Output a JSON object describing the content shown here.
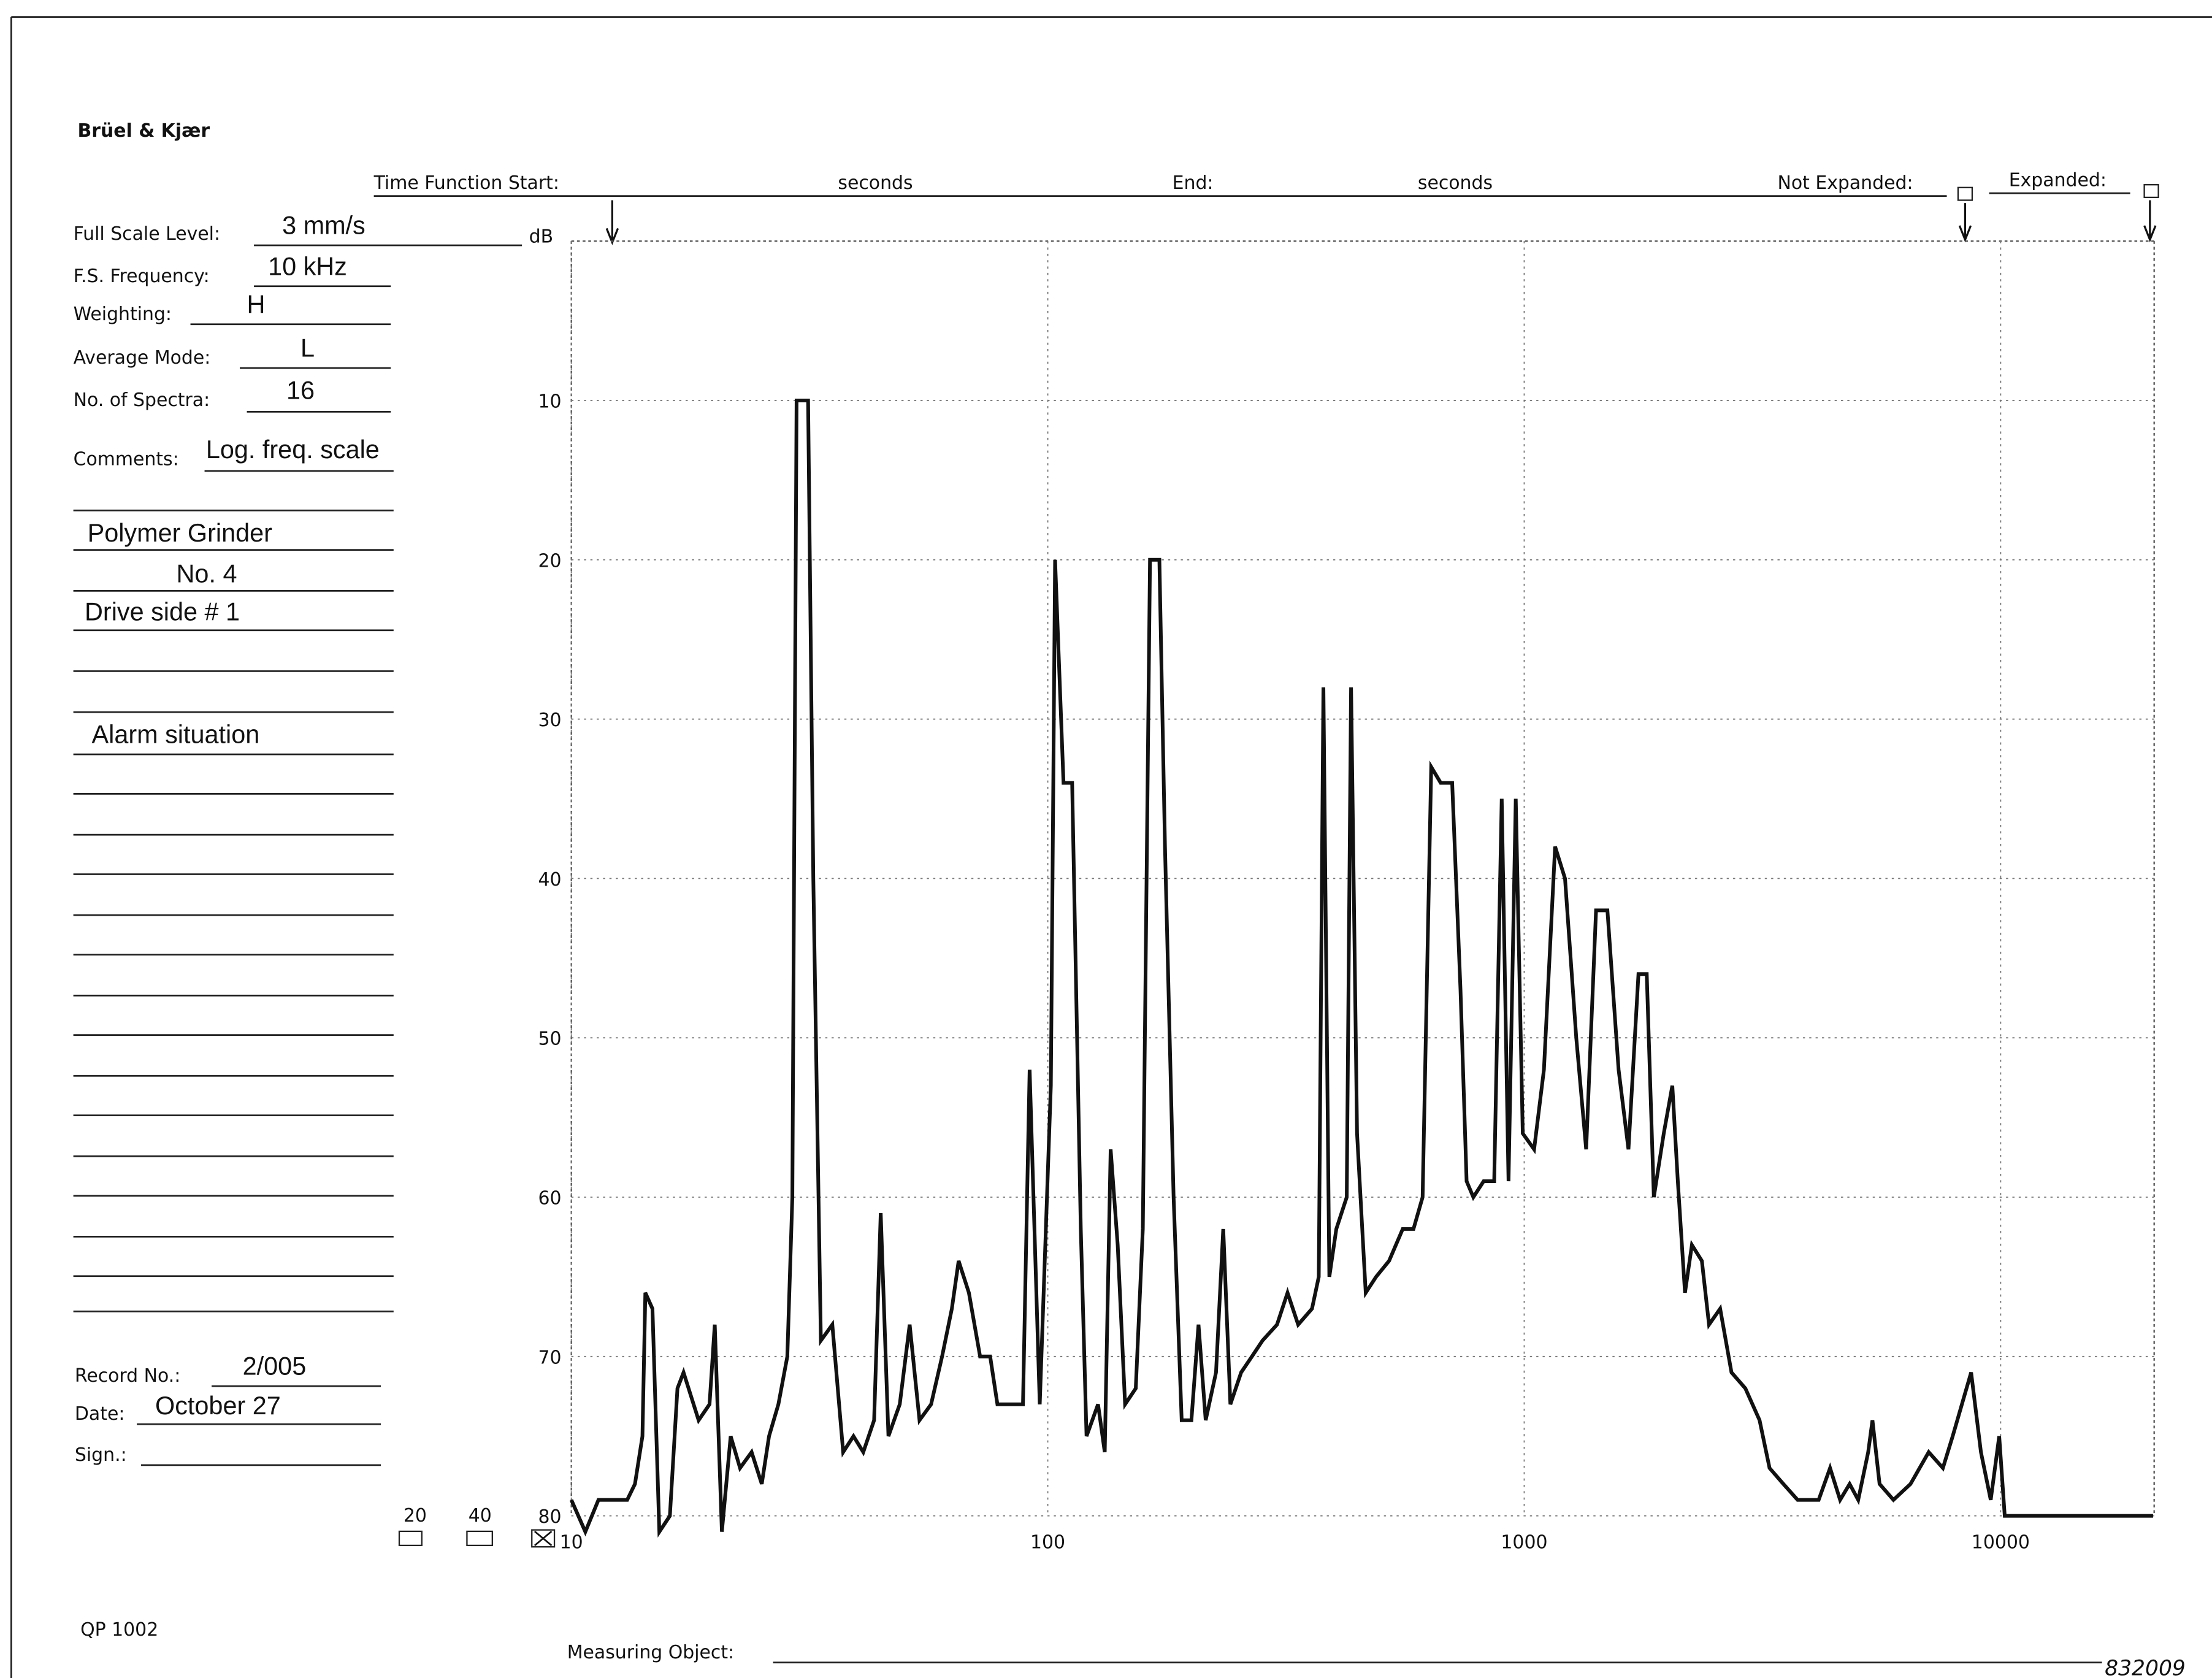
{
  "header": {
    "brand": "Brüel & Kjær",
    "time_function_start": "Time Function Start:",
    "seconds_start": "seconds",
    "end": "End:",
    "seconds_end": "seconds",
    "not_expanded": "Not Expanded:",
    "expanded": "Expanded:"
  },
  "form": {
    "full_scale_level": {
      "label": "Full Scale Level:",
      "value": "3 mm/s"
    },
    "fs_frequency": {
      "label": "F.S. Frequency:",
      "value": "10 kHz"
    },
    "weighting": {
      "label": "Weighting:",
      "value": "H"
    },
    "average_mode": {
      "label": "Average Mode:",
      "value": "L"
    },
    "no_of_spectra": {
      "label": "No. of Spectra:",
      "value": "16"
    },
    "comments": {
      "label": "Comments:",
      "value": "Log. freq. scale",
      "lines": [
        "Polymer Grinder",
        "No. 4",
        "Drive side # 1",
        "Alarm situation"
      ]
    },
    "record_no": {
      "label": "Record No.:",
      "value": "2/005"
    },
    "date": {
      "label": "Date:",
      "value": "October 27"
    },
    "sign": {
      "label": "Sign.:"
    },
    "range_options": [
      "20",
      "40"
    ]
  },
  "footer": {
    "form_code": "QP 1002",
    "measuring_object": "Measuring Object:",
    "figure_no": "832009"
  },
  "chart_data": {
    "type": "line",
    "y_label": "dB",
    "x_log_scale": true,
    "y_reversed": true,
    "grid": true,
    "color": "#111111",
    "xlim": [
      10,
      21000
    ],
    "ylim": [
      0,
      80
    ],
    "xticks": [
      10,
      100,
      1000,
      10000
    ],
    "yticks": [
      10,
      20,
      30,
      40,
      50,
      60,
      70,
      80
    ],
    "x": [
      10,
      10.7,
      11.4,
      13.1,
      13.6,
      14.1,
      14.3,
      14.8,
      15.3,
      16.1,
      16.7,
      17.2,
      18.5,
      19.5,
      20,
      20.7,
      21.6,
      22.6,
      23.9,
      25.1,
      26,
      27.2,
      28.4,
      29.1,
      29.7,
      31.4,
      32.2,
      33.4,
      35.3,
      37.2,
      39.1,
      41,
      43.2,
      44.6,
      46.3,
      48.9,
      51.3,
      53.8,
      56.9,
      60,
      62.9,
      65,
      68.3,
      72.1,
      75.7,
      78.4,
      82.8,
      88.7,
      91.6,
      96.2,
      101.5,
      103.6,
      107.9,
      112.5,
      117.3,
      120.6,
      127.5,
      131.7,
      135.5,
      140.2,
      145.3,
      153,
      158.3,
      163.9,
      171.5,
      176.2,
      183.7,
      191,
      200.2,
      207.2,
      214.5,
      225.5,
      233.5,
      241.7,
      254.6,
      268.2,
      282.3,
      302.8,
      318.6,
      335.4,
      358.6,
      370.5,
      378.9,
      389.9,
      403.3,
      424.1,
      433.1,
      445.8,
      464.9,
      488.8,
      520.4,
      555.9,
      585.6,
      612,
      638,
      668,
      706,
      735,
      757,
      782,
      822,
      865,
      897,
      927,
      960,
      993,
      1049,
      1100,
      1161,
      1218,
      1286,
      1349,
      1415,
      1495,
      1578,
      1655,
      1737,
      1808,
      1871,
      1963,
      2046,
      2101,
      2175,
      2249,
      2360,
      2443,
      2578,
      2723,
      2912,
      3119,
      3273,
      3499,
      3749,
      4150,
      4385,
      4603,
      4820,
      5024,
      5272,
      5382,
      5570,
      5957,
      6469,
      7063,
      7565,
      7931,
      8670,
      9091,
      9532,
      9931,
      10200,
      20890
    ],
    "values": [
      79,
      81,
      79,
      79,
      78,
      75,
      66,
      67,
      81,
      80,
      72,
      71,
      74,
      73,
      68,
      81,
      75,
      77,
      76,
      78,
      75,
      73,
      70,
      60,
      10,
      10,
      40,
      69,
      68,
      76,
      75,
      76,
      74,
      61,
      75,
      73,
      68,
      74,
      73,
      70,
      67,
      64,
      66,
      70,
      70,
      73,
      73,
      73,
      52,
      73,
      53,
      20,
      34,
      34,
      62,
      75,
      73,
      76,
      57,
      63,
      73,
      72,
      62,
      20,
      20,
      38,
      60,
      74,
      74,
      68,
      74,
      71,
      62,
      73,
      71,
      70,
      69,
      68,
      66,
      68,
      67,
      65,
      28,
      65,
      62,
      60,
      28,
      56,
      66,
      65,
      64,
      62,
      62,
      60,
      33,
      34,
      34,
      47,
      59,
      60,
      59,
      59,
      35,
      59,
      35,
      56,
      57,
      52,
      38,
      40,
      50,
      57,
      42,
      42,
      52,
      57,
      46,
      46,
      60,
      56,
      53,
      59,
      66,
      63,
      64,
      68,
      67,
      71,
      72,
      74,
      77,
      78,
      79,
      79,
      77,
      79,
      78,
      79,
      76,
      74,
      78,
      79,
      78,
      76,
      77,
      75,
      71,
      76,
      79,
      75,
      80,
      80
    ]
  }
}
